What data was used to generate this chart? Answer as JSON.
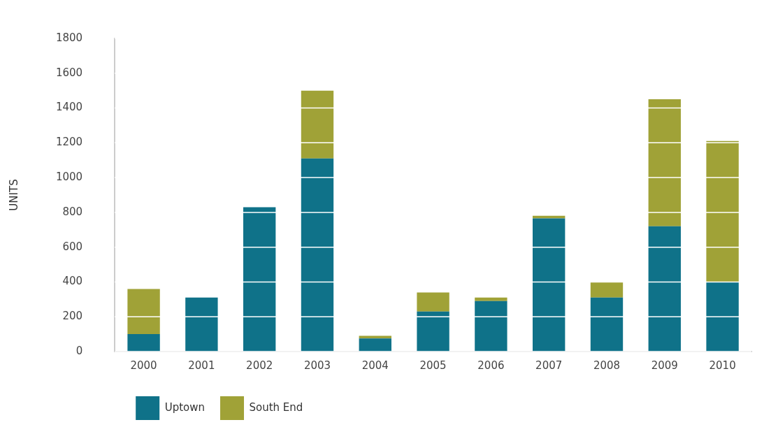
{
  "chart_data": {
    "type": "bar",
    "stacked": true,
    "ylabel": "UNITS",
    "categories": [
      "2000",
      "2001",
      "2002",
      "2003",
      "2004",
      "2005",
      "2006",
      "2007",
      "2008",
      "2009",
      "2010"
    ],
    "series": [
      {
        "name": "Uptown",
        "color": "#0f7289",
        "values": [
          100,
          310,
          830,
          1110,
          75,
          230,
          290,
          765,
          310,
          720,
          400
        ]
      },
      {
        "name": "South End",
        "color": "#a0a237",
        "values": [
          260,
          0,
          0,
          390,
          15,
          110,
          20,
          15,
          90,
          730,
          810
        ]
      }
    ],
    "ylim": [
      0,
      1800
    ],
    "yticks": [
      0,
      200,
      400,
      600,
      800,
      1000,
      1200,
      1400,
      1600,
      1800
    ],
    "grid": "y",
    "legend": "bottom left"
  }
}
